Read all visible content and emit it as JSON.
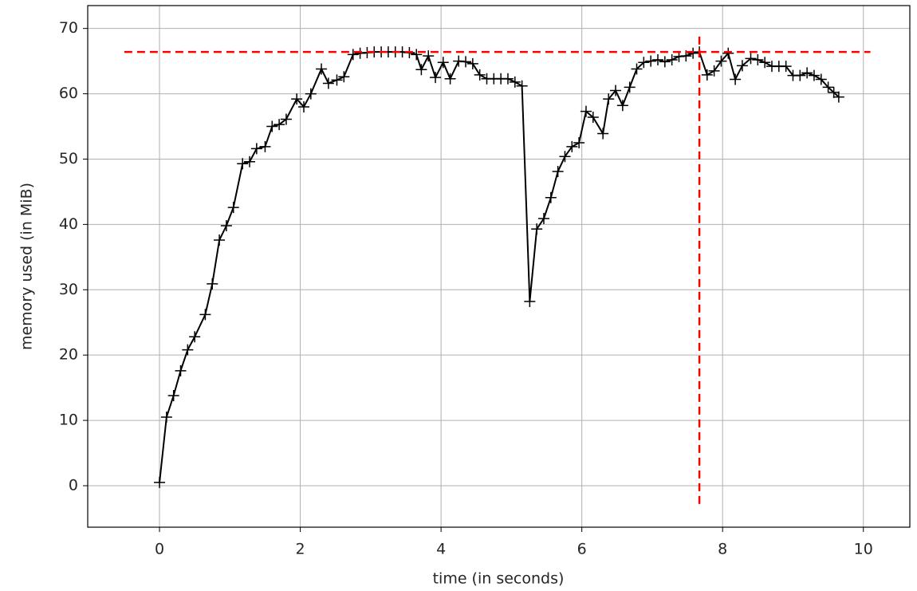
{
  "chart_data": {
    "type": "line",
    "xlabel": "time (in seconds)",
    "ylabel": "memory used (in MiB)",
    "xlim": [
      -1.02,
      10.66
    ],
    "ylim": [
      -6.35,
      73.5
    ],
    "xticks": [
      0,
      2,
      4,
      6,
      8,
      10
    ],
    "yticks": [
      0,
      10,
      20,
      30,
      40,
      50,
      60,
      70
    ],
    "grid": true,
    "marker": "+",
    "x": [
      0,
      0.1,
      0.2,
      0.3,
      0.4,
      0.5,
      0.65,
      0.75,
      0.85,
      0.95,
      1.05,
      1.18,
      1.28,
      1.38,
      1.5,
      1.6,
      1.7,
      1.8,
      1.95,
      2.05,
      2.15,
      2.3,
      2.4,
      2.52,
      2.62,
      2.75,
      2.85,
      2.95,
      3.05,
      3.15,
      3.25,
      3.35,
      3.45,
      3.55,
      3.65,
      3.72,
      3.82,
      3.92,
      4.03,
      4.13,
      4.25,
      4.35,
      4.45,
      4.55,
      4.65,
      4.75,
      4.85,
      4.95,
      5.05,
      5.15,
      5.26,
      5.36,
      5.46,
      5.56,
      5.66,
      5.76,
      5.86,
      5.96,
      6.06,
      6.16,
      6.3,
      6.38,
      6.48,
      6.58,
      6.68,
      6.78,
      6.88,
      6.98,
      7.08,
      7.18,
      7.28,
      7.38,
      7.48,
      7.58,
      7.67,
      7.78,
      7.88,
      7.98,
      8.08,
      8.18,
      8.28,
      8.4,
      8.5,
      8.6,
      8.7,
      8.8,
      8.9,
      9.0,
      9.1,
      9.2,
      9.3,
      9.4,
      9.5,
      9.58,
      9.65
    ],
    "series": [
      {
        "color": "#000000",
        "values": [
          0.5,
          10.5,
          13.8,
          17.6,
          20.8,
          22.8,
          26.2,
          30.9,
          37.6,
          39.8,
          42.6,
          49.3,
          49.6,
          51.6,
          51.9,
          55.0,
          55.3,
          56.1,
          59.2,
          58.0,
          60.0,
          63.8,
          61.6,
          62.1,
          62.6,
          66.0,
          66.2,
          66.3,
          66.4,
          66.4,
          66.4,
          66.4,
          66.4,
          66.3,
          66.0,
          63.7,
          65.8,
          62.5,
          64.8,
          62.3,
          65.0,
          64.9,
          64.6,
          62.9,
          62.3,
          62.3,
          62.3,
          62.3,
          61.8,
          61.2,
          28.2,
          39.3,
          40.9,
          44.1,
          48.1,
          50.4,
          51.9,
          52.5,
          57.3,
          56.4,
          53.9,
          59.2,
          60.5,
          58.2,
          61.0,
          63.8,
          64.8,
          65.0,
          65.2,
          64.9,
          65.2,
          65.7,
          65.8,
          66.2,
          66.4,
          62.9,
          63.5,
          65.0,
          66.2,
          62.2,
          64.3,
          65.4,
          65.2,
          64.8,
          64.2,
          64.2,
          64.2,
          62.8,
          62.8,
          63.2,
          62.8,
          62.2,
          61.0,
          60.2,
          59.5
        ]
      }
    ],
    "hline": {
      "y": 66.4,
      "xlim": [
        -0.5,
        10.1
      ]
    },
    "vline": {
      "x": 7.67,
      "ylim": [
        -2.8,
        69.3
      ]
    },
    "peak_color": "#ff0000"
  }
}
